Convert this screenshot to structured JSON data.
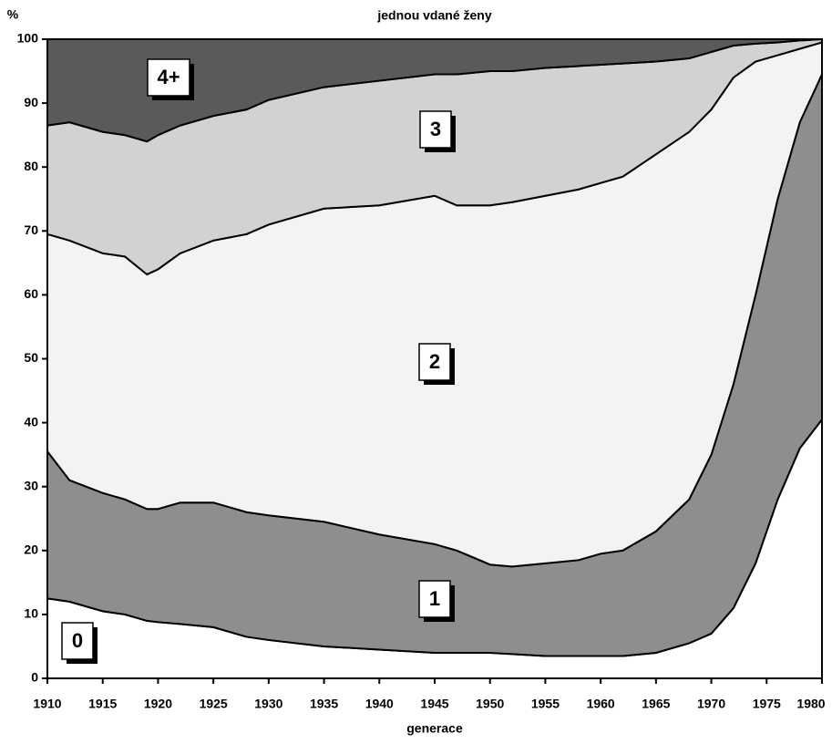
{
  "chart_data": {
    "type": "stacked_area",
    "title": "jednou vdané ženy",
    "ylabel": "%",
    "xlabel": "generace",
    "x": [
      1910,
      1912,
      1915,
      1917,
      1919,
      1920,
      1922,
      1925,
      1928,
      1930,
      1935,
      1940,
      1945,
      1947,
      1950,
      1952,
      1955,
      1958,
      1960,
      1962,
      1965,
      1968,
      1970,
      1972,
      1974,
      1976,
      1978,
      1980
    ],
    "series": [
      {
        "name": "0",
        "color": "#ffffff",
        "values": [
          12.5,
          12,
          10.5,
          10,
          9,
          8.8,
          8.5,
          8,
          6.5,
          6,
          5,
          4.5,
          4,
          4,
          4,
          3.8,
          3.5,
          3.5,
          3.5,
          3.5,
          4,
          5.5,
          7,
          11,
          18,
          28,
          36,
          40.5
        ]
      },
      {
        "name": "1",
        "color": "#8e8e8e",
        "values": [
          23,
          19,
          18.5,
          18,
          17.5,
          17.7,
          19,
          19.5,
          19.5,
          19.5,
          19.5,
          18,
          17,
          16,
          13.8,
          13.7,
          14.5,
          15,
          16,
          16.5,
          19,
          22.5,
          28,
          35,
          42,
          47,
          51,
          54
        ]
      },
      {
        "name": "2",
        "color": "#f3f3f3",
        "values": [
          34,
          37.5,
          37.5,
          38,
          36.7,
          37.5,
          39,
          41,
          43.5,
          45.5,
          49,
          51.5,
          54.5,
          54,
          56.2,
          57,
          57.5,
          58,
          58,
          58.5,
          59,
          57.5,
          54,
          48,
          36.5,
          22.5,
          11.5,
          5
        ]
      },
      {
        "name": "3",
        "color": "#d2d2d2",
        "values": [
          17,
          18.5,
          19,
          19,
          20.8,
          21,
          20,
          19.5,
          19.5,
          19.5,
          19,
          19.5,
          19,
          20.5,
          21,
          20.5,
          20,
          19.3,
          18.5,
          17.7,
          14.5,
          11.5,
          9,
          5,
          2.8,
          2,
          1.3,
          0.5
        ]
      },
      {
        "name": "4+",
        "color": "#5a5a5a",
        "values": [
          13.5,
          13,
          14.5,
          15,
          16,
          15,
          13.5,
          12,
          11,
          9.5,
          7.5,
          6.5,
          5.5,
          5.5,
          5,
          5,
          4.5,
          4.2,
          4,
          3.8,
          3.5,
          3,
          2,
          1,
          0.7,
          0.5,
          0.2,
          0
        ]
      }
    ],
    "xlim": [
      1910,
      1980
    ],
    "xticks": [
      1910,
      1915,
      1920,
      1925,
      1930,
      1935,
      1940,
      1945,
      1950,
      1955,
      1960,
      1965,
      1970,
      1975,
      1980
    ],
    "ylim": [
      0,
      100
    ],
    "yticks": [
      0,
      10,
      20,
      30,
      40,
      50,
      60,
      70,
      80,
      90,
      100
    ]
  }
}
